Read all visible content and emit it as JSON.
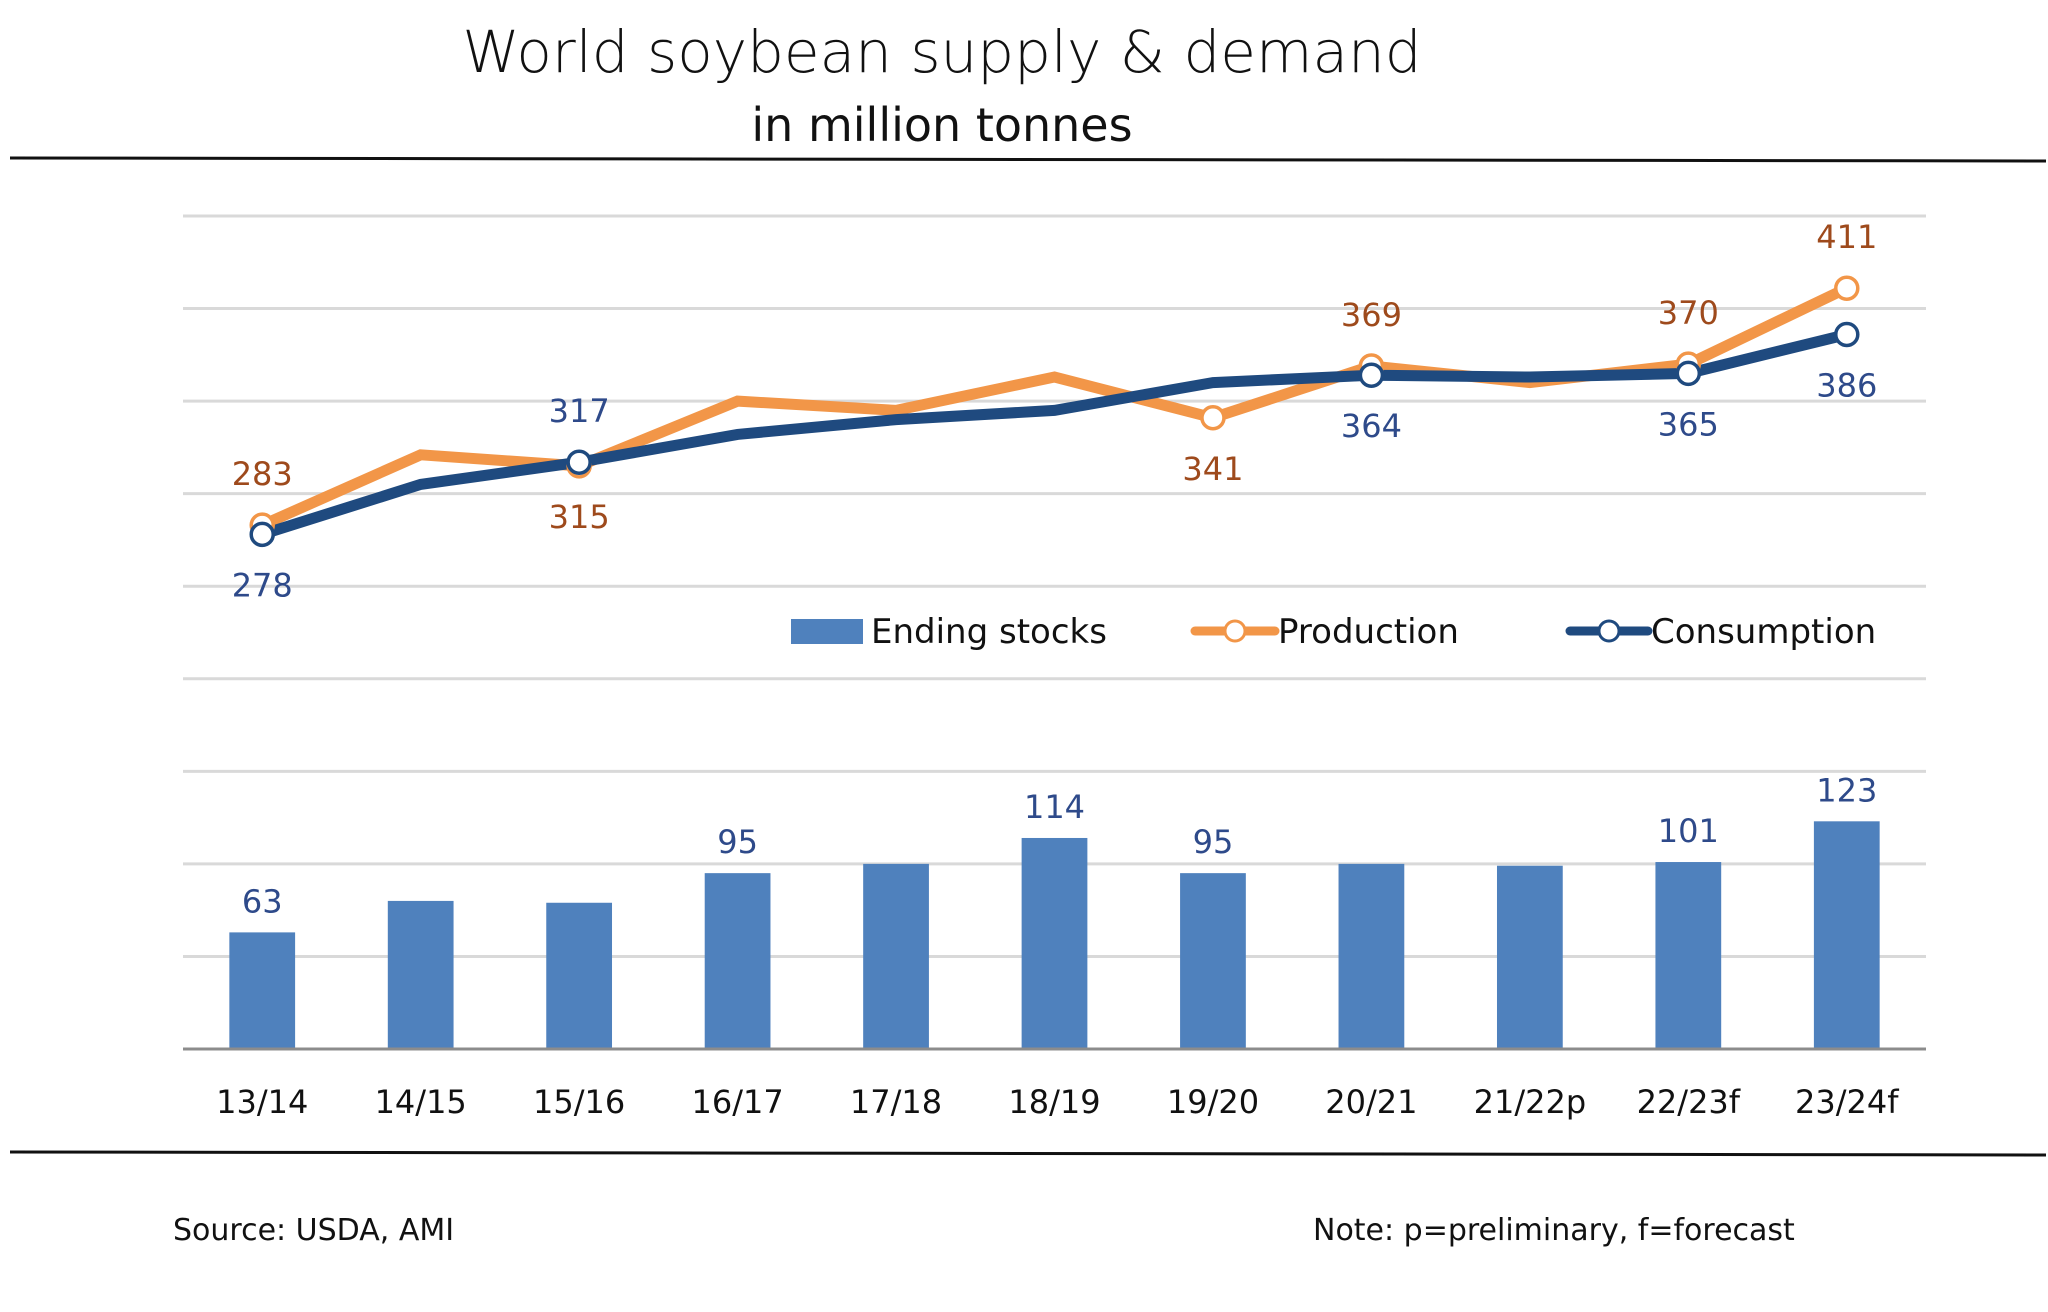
{
  "colors": {
    "bars": "#4F81BD",
    "production_line": "#F29648",
    "consumption_line": "#1F4A7F",
    "production_label": "#9E4A1C",
    "consumption_label": "#2E4A8A",
    "bar_label": "#2E4A8A",
    "gridline": "#D9D9D9",
    "axis": "#8C8C8C",
    "rule": "#111111"
  },
  "footer": {
    "source": "Source: USDA, AMI",
    "note": "Note: p=preliminary, f=forecast"
  },
  "chart_data": {
    "type": "bar+line",
    "title": "World soybean supply & demand",
    "subtitle": "in million tonnes",
    "xlabel": "",
    "ylabel": "",
    "ylim": [
      0,
      450
    ],
    "ytick_step": 50,
    "y_tick_labels_shown": false,
    "grid": true,
    "legend_position": "middle-right",
    "categories": [
      "13/14",
      "14/15",
      "15/16",
      "16/17",
      "17/18",
      "18/19",
      "19/20",
      "20/21",
      "21/22p",
      "22/23f",
      "23/24f"
    ],
    "series": [
      {
        "name": "Ending stocks",
        "type": "bar",
        "values": [
          63,
          80,
          79,
          95,
          100,
          114,
          95,
          100,
          99,
          101,
          123
        ],
        "data_labels": [
          "63",
          null,
          null,
          "95",
          null,
          "114",
          "95",
          null,
          null,
          "101",
          "123"
        ]
      },
      {
        "name": "Production",
        "type": "line",
        "marker": "open-circle",
        "values": [
          283,
          321,
          315,
          350,
          345,
          363,
          341,
          369,
          360,
          370,
          411
        ],
        "data_labels": [
          "283",
          null,
          "315",
          null,
          null,
          null,
          "341",
          "369",
          null,
          "370",
          "411"
        ],
        "label_positions": [
          "above",
          null,
          "below",
          null,
          null,
          null,
          "below",
          "above",
          null,
          "above",
          "above"
        ],
        "markers_shown": [
          true,
          false,
          true,
          false,
          false,
          false,
          true,
          true,
          false,
          true,
          true
        ]
      },
      {
        "name": "Consumption",
        "type": "line",
        "marker": "open-circle",
        "values": [
          278,
          305,
          317,
          332,
          340,
          345,
          360,
          364,
          363,
          365,
          386
        ],
        "data_labels": [
          "278",
          null,
          "317",
          null,
          null,
          null,
          null,
          "364",
          null,
          "365",
          "386"
        ],
        "label_positions": [
          "below",
          null,
          "above",
          null,
          null,
          null,
          null,
          "below",
          null,
          "below",
          "below"
        ],
        "markers_shown": [
          true,
          false,
          true,
          false,
          false,
          false,
          false,
          true,
          false,
          true,
          true
        ]
      }
    ]
  }
}
